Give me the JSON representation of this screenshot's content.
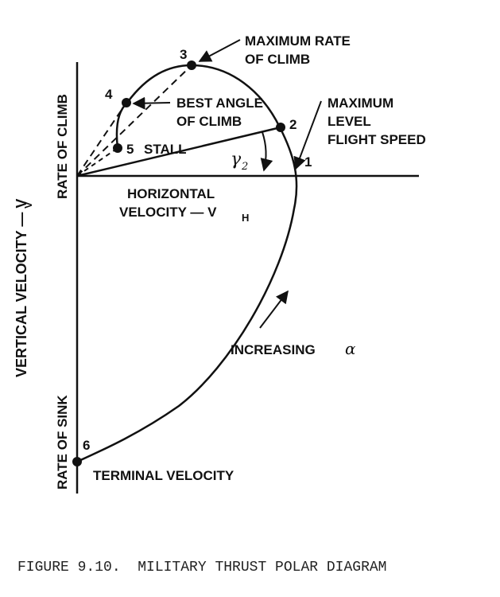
{
  "diagram": {
    "vertical_axis_title": "VERTICAL VELOCITY — V",
    "vertical_axis_subscript": "V",
    "climb_label": "RATE OF CLIMB",
    "sink_label": "RATE OF SINK",
    "horizontal_label_line1": "HORIZONTAL",
    "horizontal_label_line2": "VELOCITY — V",
    "horizontal_label_subscript": "H",
    "gamma_symbol": "γ",
    "gamma_subscript": "2",
    "alpha_text": "INCREASING",
    "alpha_symbol": "α",
    "points": [
      {
        "number": "1",
        "name": "maximum-level-flight-speed"
      },
      {
        "number": "2",
        "name": "point-2"
      },
      {
        "number": "3",
        "name": "maximum-rate-of-climb"
      },
      {
        "number": "4",
        "name": "best-angle-of-climb"
      },
      {
        "number": "5",
        "name": "stall"
      },
      {
        "number": "6",
        "name": "terminal-velocity"
      }
    ],
    "annotations": {
      "max_rate_line1": "MAXIMUM RATE",
      "max_rate_line2": "OF CLIMB",
      "best_angle_line1": "BEST ANGLE",
      "best_angle_line2": "OF CLIMB",
      "stall": "STALL",
      "max_level_line1": "MAXIMUM",
      "max_level_line2": "LEVEL",
      "max_level_line3": "FLIGHT SPEED",
      "terminal": "TERMINAL VELOCITY"
    }
  },
  "caption": "FIGURE 9.10.  MILITARY THRUST POLAR DIAGRAM"
}
